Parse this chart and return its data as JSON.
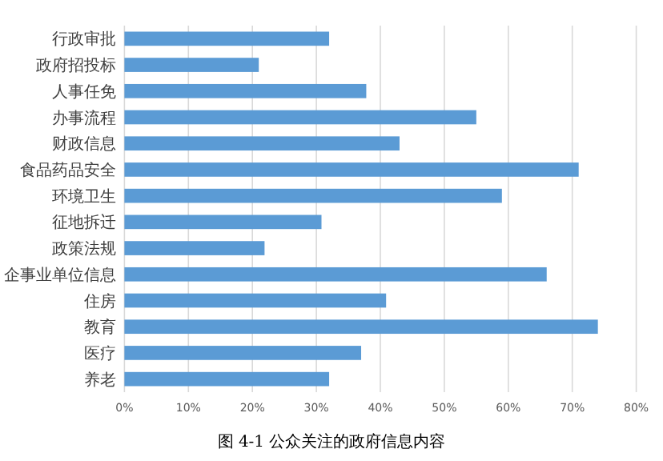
{
  "chart_data": {
    "type": "bar",
    "orientation": "horizontal",
    "title": "图 4-1 公众关注的政府信息内容",
    "categories": [
      "行政审批",
      "政府招投标",
      "人事任免",
      "办事流程",
      "财政信息",
      "食品药品安全",
      "环境卫生",
      "征地拆迁",
      "政策法规",
      "企事业单位信息",
      "住房",
      "教育",
      "医疗",
      "养老"
    ],
    "values": [
      32,
      21,
      37.8,
      55,
      43,
      71,
      59,
      30.8,
      21.9,
      66,
      40.9,
      74,
      37,
      32
    ],
    "color": "#5b9bd5",
    "xlim": [
      0,
      80
    ],
    "xticks": [
      {
        "value": 0,
        "label": "0%"
      },
      {
        "value": 10,
        "label": "10%"
      },
      {
        "value": 20,
        "label": "20%"
      },
      {
        "value": 30,
        "label": "30%"
      },
      {
        "value": 40,
        "label": "40%"
      },
      {
        "value": 50,
        "label": "50%"
      },
      {
        "value": 60,
        "label": "60%"
      },
      {
        "value": 70,
        "label": "70%"
      },
      {
        "value": 80,
        "label": "80%"
      }
    ],
    "grid": "x"
  }
}
